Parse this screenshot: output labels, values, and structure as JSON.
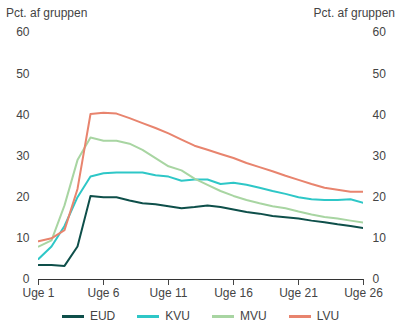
{
  "chart_data": {
    "type": "line",
    "ylabel": "Pct. af gruppen",
    "y2label": "Pct. af gruppen",
    "x": [
      1,
      2,
      3,
      4,
      5,
      6,
      7,
      8,
      9,
      10,
      11,
      12,
      13,
      14,
      15,
      16,
      17,
      18,
      19,
      20,
      21,
      22,
      23,
      24,
      25,
      26
    ],
    "xlim": [
      1,
      26
    ],
    "xticks": [
      {
        "value": 1,
        "label": "Uge 1"
      },
      {
        "value": 6,
        "label": "Uge 6"
      },
      {
        "value": 11,
        "label": "Uge 11"
      },
      {
        "value": 16,
        "label": "Uge 16"
      },
      {
        "value": 21,
        "label": "Uge 21"
      },
      {
        "value": 26,
        "label": "Uge 26"
      }
    ],
    "ylim": [
      0,
      60
    ],
    "yticks": [
      0,
      10,
      20,
      30,
      40,
      50,
      60
    ],
    "y2lim": [
      0,
      60
    ],
    "y2ticks": [
      0,
      10,
      20,
      30,
      40,
      50,
      60
    ],
    "grid": false,
    "legend": "bottom",
    "series": [
      {
        "name": "EUD",
        "color": "#0e4f4a",
        "values": [
          3.5,
          3.5,
          3.3,
          8,
          20.3,
          20,
          20,
          19.2,
          18.5,
          18.3,
          17.8,
          17.3,
          17.6,
          18,
          17.6,
          17,
          16.4,
          16,
          15.4,
          15.1,
          14.8,
          14.3,
          13.9,
          13.4,
          13,
          12.5
        ]
      },
      {
        "name": "KVU",
        "color": "#2ec7c7",
        "values": [
          5,
          8,
          13,
          20,
          25,
          25.8,
          26,
          26,
          26,
          25.3,
          25,
          24,
          24.3,
          24.3,
          23.2,
          23.5,
          23,
          22.3,
          21.5,
          20.8,
          20,
          19.5,
          19.3,
          19.3,
          19.5,
          18.6
        ]
      },
      {
        "name": "MVU",
        "color": "#a8d5a2",
        "values": [
          8,
          9.5,
          18,
          29,
          34.5,
          33.7,
          33.7,
          33,
          31.5,
          29.5,
          27.5,
          26.5,
          24.5,
          23,
          21.5,
          20.3,
          19.3,
          18.5,
          17.8,
          17.3,
          16.5,
          15.8,
          15.2,
          14.8,
          14.3,
          13.8
        ]
      },
      {
        "name": "LVU",
        "color": "#e8846e",
        "values": [
          9.3,
          10,
          12,
          22,
          40.2,
          40.5,
          40.3,
          39.2,
          38,
          36.8,
          35.5,
          34,
          32.5,
          31.5,
          30.5,
          29.5,
          28.3,
          27.3,
          26.3,
          25.2,
          24.2,
          23.2,
          22.3,
          21.8,
          21.3,
          21.3
        ]
      }
    ]
  }
}
